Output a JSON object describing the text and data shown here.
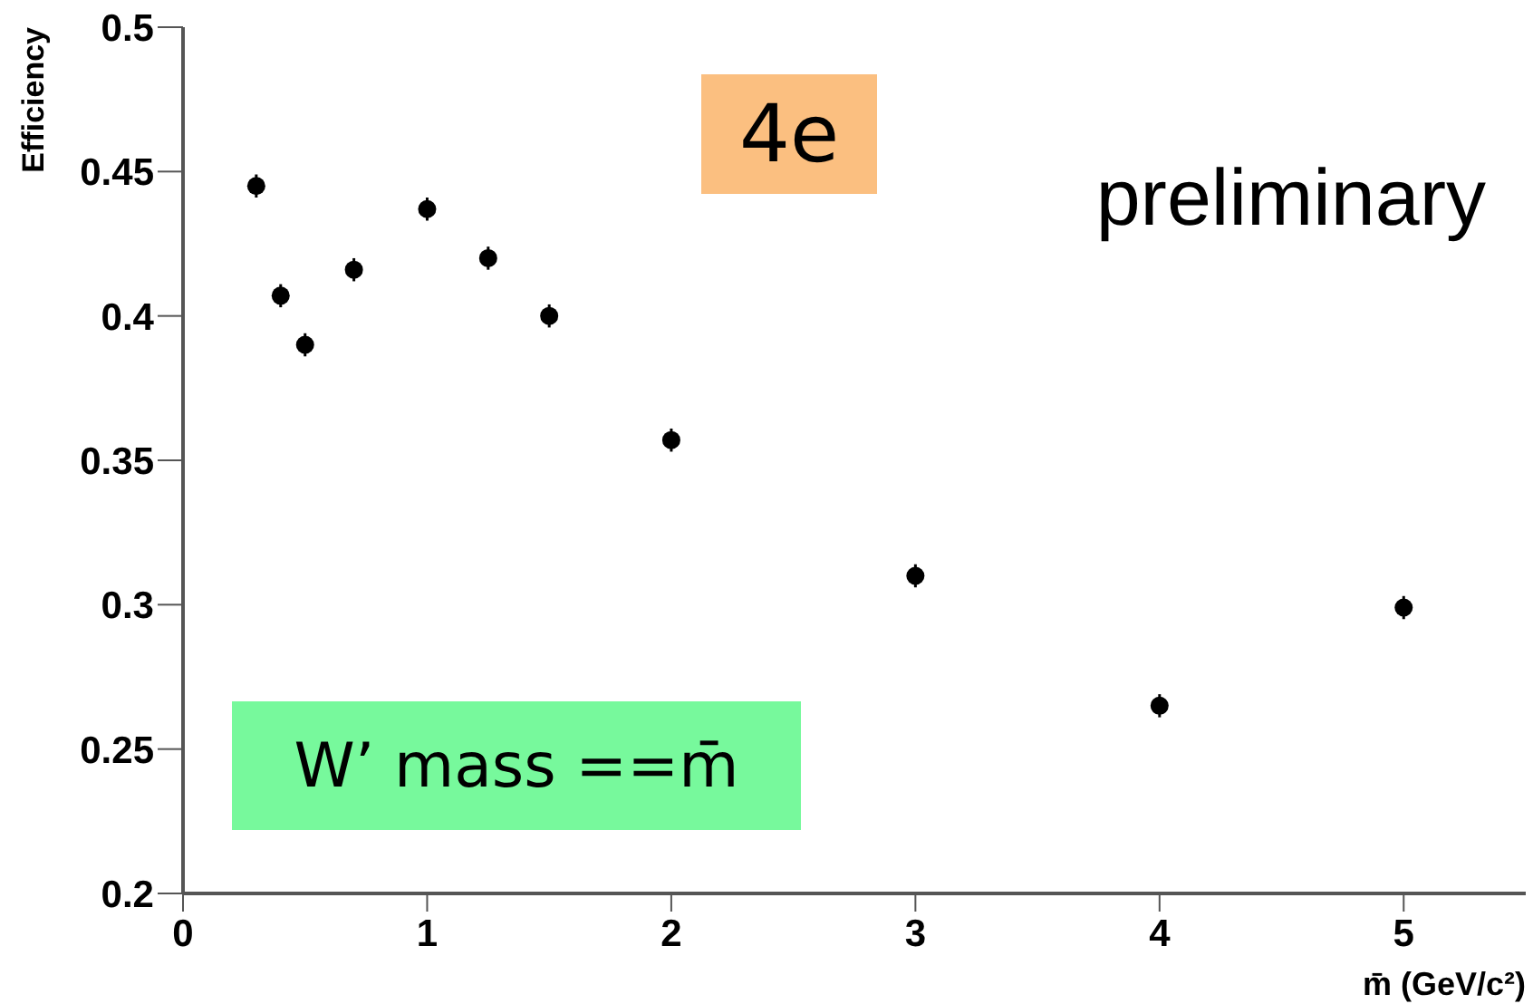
{
  "chart_data": {
    "type": "scatter",
    "ylabel": "Efficiency",
    "xlabel": "m̄ (GeV/c²)",
    "x": [
      0.3,
      0.4,
      0.5,
      0.7,
      1.0,
      1.25,
      1.5,
      2,
      3,
      4,
      5
    ],
    "values": [
      0.445,
      0.407,
      0.39,
      0.416,
      0.437,
      0.42,
      0.4,
      0.357,
      0.31,
      0.265,
      0.299
    ],
    "errors": [
      0.004,
      0.004,
      0.004,
      0.004,
      0.004,
      0.004,
      0.004,
      0.004,
      0.004,
      0.004,
      0.004
    ],
    "color": "#000000",
    "marker": "circle",
    "xlim": [
      0,
      5.5
    ],
    "xticks": [
      0,
      1,
      2,
      3,
      4,
      5
    ],
    "ylim": [
      0.2,
      0.5
    ],
    "yticks": [
      0.2,
      0.25,
      0.3,
      0.35,
      0.4,
      0.45,
      0.5
    ],
    "annotations": [
      "4e",
      "preliminary",
      "W’ mass ==m̄"
    ]
  }
}
